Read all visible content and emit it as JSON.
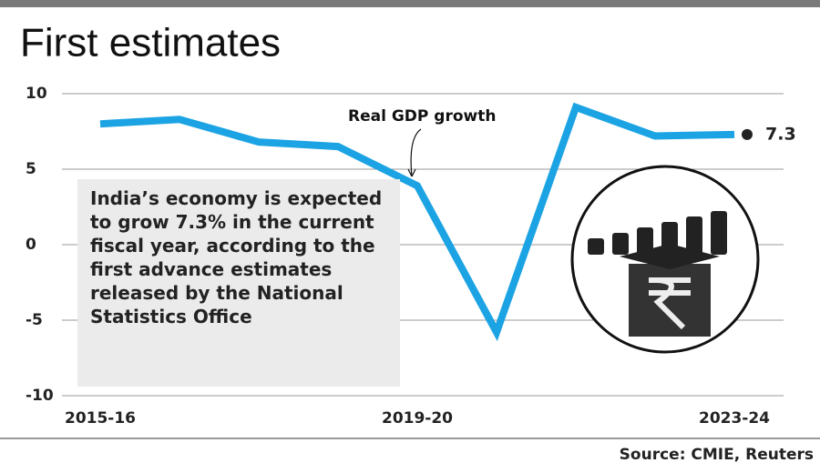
{
  "chart_data": {
    "type": "line",
    "title": "First estimates",
    "categories": [
      "2015-16",
      null,
      null,
      null,
      "2019-20",
      null,
      null,
      null,
      "2023-24"
    ],
    "series": [
      {
        "name": "Real GDP growth",
        "color": "#1ba3e3",
        "values": [
          8.0,
          8.3,
          6.8,
          6.5,
          3.9,
          -5.8,
          9.1,
          7.2,
          7.3
        ]
      }
    ],
    "ylim": [
      -10,
      10
    ],
    "yticks": [
      -10,
      -5,
      0,
      5,
      10
    ],
    "grid": true,
    "annotation": "India’s economy is expected to grow 7.3% in the current fiscal year, according to the first advance estimates released by the National Statistics Office",
    "source": "Source: CMIE, Reuters"
  }
}
